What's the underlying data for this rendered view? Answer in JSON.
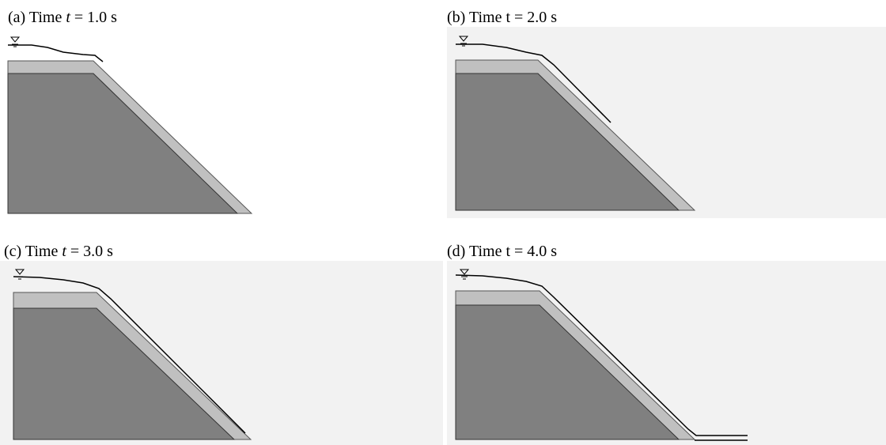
{
  "panels": [
    {
      "prefix": "(a) Time",
      "var": "t",
      "suffix": "= 1.0 s",
      "var_italic": true
    },
    {
      "prefix": "(b) Time",
      "var": "t",
      "suffix": "= 2.0 s",
      "var_italic": false
    },
    {
      "prefix": "(c) Time",
      "var": "t",
      "suffix": "= 3.0 s",
      "var_italic": true
    },
    {
      "prefix": "(d) Time",
      "var": "t",
      "suffix": "= 4.0 s",
      "var_italic": false
    }
  ]
}
